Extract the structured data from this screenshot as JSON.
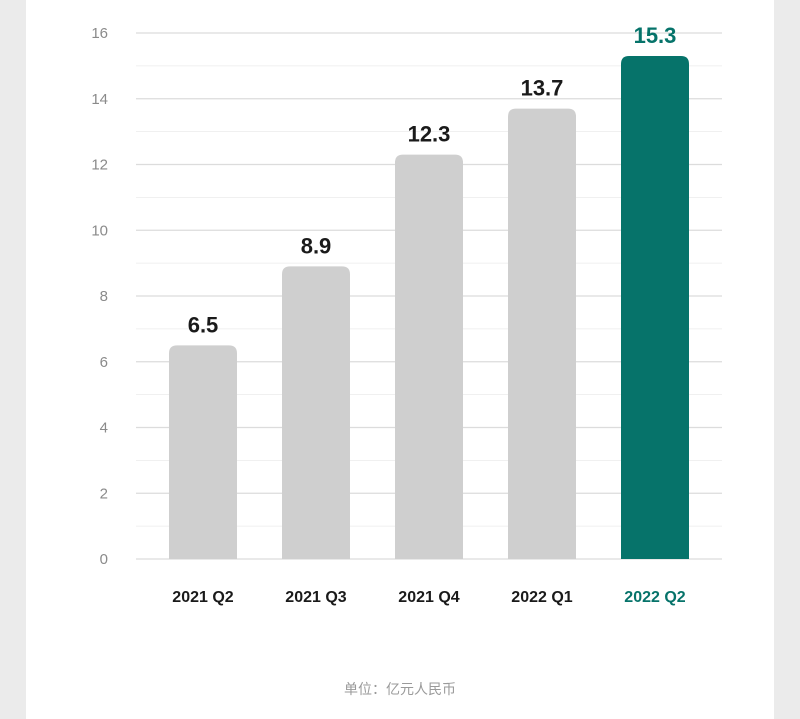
{
  "chart_data": {
    "type": "bar",
    "categories": [
      "2021 Q2",
      "2021 Q3",
      "2021 Q4",
      "2022 Q1",
      "2022 Q2"
    ],
    "values": [
      6.5,
      8.9,
      12.3,
      13.7,
      15.3
    ],
    "data_labels": [
      "6.5",
      "8.9",
      "12.3",
      "13.7",
      "15.3"
    ],
    "y_ticks": [
      "0",
      "2",
      "4",
      "6",
      "8",
      "10",
      "12",
      "14",
      "16"
    ],
    "ylim": [
      0,
      16
    ],
    "grid": true,
    "highlight_index": 4,
    "colors": {
      "bar": "#cfcfcf",
      "highlight": "#06736a",
      "label": "#1a1a1a",
      "tick": "#8a8a8a",
      "grid": "#dcdcdc"
    }
  },
  "unit_note": "单位：亿元人民币"
}
